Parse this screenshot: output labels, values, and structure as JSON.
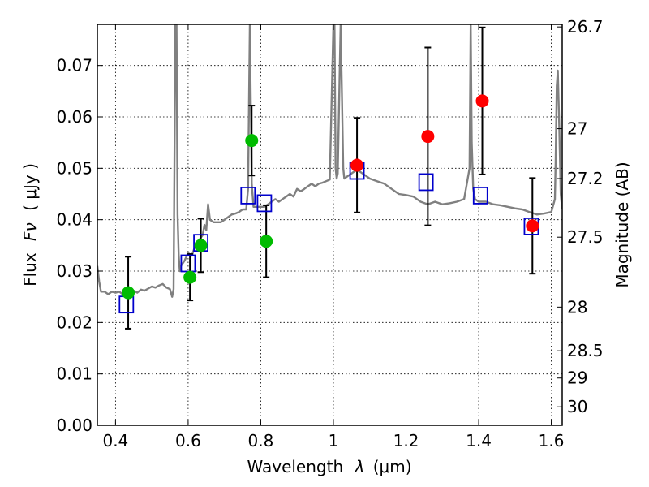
{
  "chart_data": {
    "type": "scatter",
    "title": "",
    "xlabel_text": "Wavelength",
    "xlabel_symbol": "λ",
    "xlabel_units": "(μm)",
    "ylabel_text": "Flux",
    "ylabel_symbol": "Fν",
    "ylabel_units": "( μJy )",
    "ylabel_right": "Magnitude (AB)",
    "xlim": [
      0.35,
      1.63
    ],
    "ylim": [
      0.0,
      0.078
    ],
    "grid": true,
    "x_ticks": [
      0.4,
      0.6,
      0.8,
      1.0,
      1.2,
      1.4,
      1.6
    ],
    "x_tick_labels": [
      "0.4",
      "0.6",
      "0.8",
      "1",
      "1.2",
      "1.4",
      "1.6"
    ],
    "y_ticks": [
      0.0,
      0.01,
      0.02,
      0.03,
      0.04,
      0.05,
      0.06,
      0.07
    ],
    "y_tick_labels": [
      "0.00",
      "0.01",
      "0.02",
      "0.03",
      "0.04",
      "0.05",
      "0.06",
      "0.07"
    ],
    "right_ticks": [
      {
        "label": "26.7",
        "flux": 0.0775
      },
      {
        "label": "27",
        "flux": 0.0577
      },
      {
        "label": "27.2",
        "flux": 0.048
      },
      {
        "label": "27.5",
        "flux": 0.0366
      },
      {
        "label": "28",
        "flux": 0.023
      },
      {
        "label": "28.5",
        "flux": 0.0145
      },
      {
        "label": "29",
        "flux": 0.0092
      },
      {
        "label": "30",
        "flux": 0.0036
      }
    ],
    "series": [
      {
        "name": "model-spectrum",
        "kind": "line",
        "color": "#808080",
        "x": [
          0.35,
          0.355,
          0.36,
          0.37,
          0.38,
          0.39,
          0.4,
          0.41,
          0.42,
          0.43,
          0.44,
          0.45,
          0.46,
          0.47,
          0.48,
          0.49,
          0.5,
          0.51,
          0.52,
          0.53,
          0.54,
          0.55,
          0.556,
          0.56,
          0.565,
          0.568,
          0.571,
          0.574,
          0.577,
          0.58,
          0.59,
          0.6,
          0.61,
          0.62,
          0.63,
          0.64,
          0.645,
          0.65,
          0.655,
          0.66,
          0.67,
          0.68,
          0.69,
          0.7,
          0.71,
          0.72,
          0.73,
          0.74,
          0.75,
          0.76,
          0.765,
          0.77,
          0.775,
          0.78,
          0.79,
          0.8,
          0.81,
          0.82,
          0.83,
          0.84,
          0.85,
          0.86,
          0.87,
          0.88,
          0.89,
          0.9,
          0.91,
          0.92,
          0.93,
          0.94,
          0.95,
          0.96,
          0.97,
          0.98,
          0.99,
          1.0,
          1.003,
          1.006,
          1.009,
          1.012,
          1.02,
          1.023,
          1.027,
          1.03,
          1.04,
          1.05,
          1.06,
          1.07,
          1.08,
          1.09,
          1.1,
          1.12,
          1.14,
          1.16,
          1.18,
          1.2,
          1.22,
          1.24,
          1.26,
          1.28,
          1.3,
          1.32,
          1.34,
          1.36,
          1.375,
          1.378,
          1.381,
          1.385,
          1.39,
          1.4,
          1.42,
          1.44,
          1.46,
          1.48,
          1.5,
          1.52,
          1.54,
          1.56,
          1.58,
          1.6,
          1.61,
          1.612,
          1.615,
          1.618,
          1.622,
          1.626,
          1.63
        ],
        "y": [
          0.031,
          0.028,
          0.026,
          0.026,
          0.0255,
          0.026,
          0.0258,
          0.026,
          0.0255,
          0.0252,
          0.0256,
          0.0262,
          0.0258,
          0.0264,
          0.0262,
          0.0266,
          0.027,
          0.0268,
          0.0272,
          0.0275,
          0.0268,
          0.0265,
          0.025,
          0.0265,
          0.078,
          0.078,
          0.041,
          0.033,
          0.03,
          0.031,
          0.032,
          0.0335,
          0.033,
          0.035,
          0.036,
          0.037,
          0.039,
          0.038,
          0.043,
          0.04,
          0.0395,
          0.0395,
          0.0395,
          0.04,
          0.0405,
          0.041,
          0.0412,
          0.0415,
          0.042,
          0.042,
          0.046,
          0.078,
          0.047,
          0.0425,
          0.0425,
          0.0425,
          0.0425,
          0.043,
          0.0435,
          0.044,
          0.0435,
          0.044,
          0.0445,
          0.045,
          0.0445,
          0.046,
          0.0455,
          0.046,
          0.0465,
          0.047,
          0.0465,
          0.047,
          0.0472,
          0.0475,
          0.0478,
          0.078,
          0.078,
          0.05,
          0.048,
          0.049,
          0.078,
          0.066,
          0.05,
          0.048,
          0.0485,
          0.049,
          0.0495,
          0.0495,
          0.049,
          0.0485,
          0.048,
          0.0475,
          0.047,
          0.046,
          0.045,
          0.0448,
          0.0445,
          0.0435,
          0.043,
          0.0435,
          0.043,
          0.0432,
          0.0435,
          0.044,
          0.05,
          0.078,
          0.055,
          0.046,
          0.044,
          0.0435,
          0.0435,
          0.043,
          0.0428,
          0.0425,
          0.0422,
          0.042,
          0.0415,
          0.041,
          0.0412,
          0.0415,
          0.044,
          0.051,
          0.066,
          0.069,
          0.058,
          0.045,
          0.042
        ]
      },
      {
        "name": "model-bandpass-flux",
        "kind": "open-square",
        "color": "#0000cc",
        "x": [
          0.43,
          0.6,
          0.635,
          0.765,
          0.81,
          1.065,
          1.255,
          1.405,
          1.545
        ],
        "y": [
          0.0235,
          0.0315,
          0.0355,
          0.0447,
          0.0432,
          0.0495,
          0.0473,
          0.0447,
          0.0387
        ]
      },
      {
        "name": "observed-optical",
        "kind": "filled-circle",
        "color": "#00bb00",
        "x": [
          0.435,
          0.605,
          0.635,
          0.775,
          0.815
        ],
        "y": [
          0.0258,
          0.0288,
          0.035,
          0.0554,
          0.0358
        ],
        "err": [
          0.007,
          0.0045,
          0.0052,
          0.0068,
          0.007
        ]
      },
      {
        "name": "observed-infrared",
        "kind": "filled-circle",
        "color": "#ff0000",
        "x": [
          1.065,
          1.26,
          1.41,
          1.548
        ],
        "y": [
          0.0506,
          0.0562,
          0.0631,
          0.0388
        ],
        "err": [
          0.0092,
          0.0173,
          0.0143,
          0.0093
        ]
      }
    ]
  }
}
